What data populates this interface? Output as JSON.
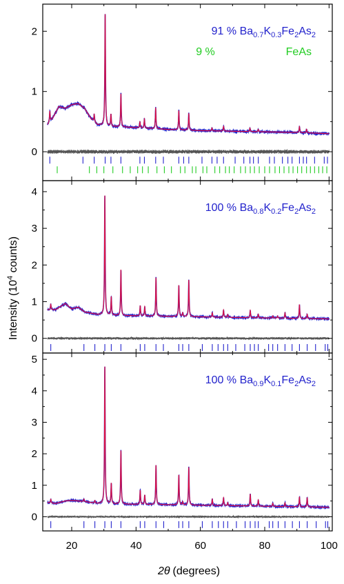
{
  "chart_data": {
    "type": "line",
    "xlabel": {
      "symbol": "2θ",
      "units": "(degrees)"
    },
    "ylabel": {
      "prefix": "Intensity (10",
      "sup": "4",
      "suffix": " counts)"
    },
    "xlim": [
      11,
      101
    ],
    "x_ticks": [
      20,
      40,
      60,
      80,
      100
    ],
    "colors": {
      "observed": "#2222cc",
      "calculated": "#dd1144",
      "difference": "#555555",
      "reflections_main": "#2222cc",
      "reflections_impurity": "#22cc22"
    },
    "panels": [
      {
        "ylim": [
          -0.48,
          2.45
        ],
        "yticks": [
          0,
          1,
          2
        ],
        "annotations": [
          {
            "text": "91 % Ba",
            "sub1": "0.7",
            "mid1": "K",
            "sub2": "0.3",
            "mid2": "Fe",
            "sub3": "2",
            "end": "As",
            "sub4": "2",
            "color": "#2222cc"
          },
          {
            "text": "9 %",
            "color": "#22cc22"
          },
          {
            "text": "FeAs",
            "color": "#22cc22"
          }
        ],
        "background": [
          [
            12.5,
            0.45
          ],
          [
            14,
            0.55
          ],
          [
            16,
            0.75
          ],
          [
            18,
            0.72
          ],
          [
            20,
            0.78
          ],
          [
            22,
            0.8
          ],
          [
            24,
            0.72
          ],
          [
            26,
            0.55
          ],
          [
            28,
            0.45
          ],
          [
            32,
            0.42
          ],
          [
            40,
            0.4
          ],
          [
            50,
            0.37
          ],
          [
            60,
            0.35
          ],
          [
            70,
            0.34
          ],
          [
            80,
            0.33
          ],
          [
            90,
            0.32
          ],
          [
            100,
            0.3
          ]
        ],
        "peaks": [
          [
            13.2,
            0.18
          ],
          [
            27.0,
            0.12
          ],
          [
            30.4,
            1.85
          ],
          [
            32.2,
            0.2
          ],
          [
            35.3,
            0.55
          ],
          [
            41.2,
            0.1
          ],
          [
            42.6,
            0.15
          ],
          [
            46.1,
            0.35
          ],
          [
            53.3,
            0.32
          ],
          [
            56.4,
            0.28
          ],
          [
            63.6,
            0.05
          ],
          [
            67.2,
            0.08
          ],
          [
            75.4,
            0.06
          ],
          [
            78.0,
            0.04
          ],
          [
            90.8,
            0.1
          ],
          [
            93.0,
            0.06
          ]
        ],
        "diff_offset": 0,
        "reflections": [
          {
            "y": -0.14,
            "x": [
              13.2,
              23.5,
              27.0,
              30.4,
              32.2,
              35.3,
              41.2,
              42.6,
              46.1,
              48.5,
              53.3,
              54.8,
              56.4,
              60.5,
              63.6,
              65.2,
              67.2,
              70.8,
              73.5,
              75.4,
              76.5,
              78.0,
              81.5,
              83.0,
              85.5,
              87.2,
              88.5,
              90.8,
              92.0,
              93.0,
              95.5,
              98.5,
              99.5
            ]
          },
          {
            "y": -0.3,
            "x": [
              15.5,
              25.5,
              27.8,
              30.0,
              32.8,
              35.8,
              38.2,
              40.5,
              42.0,
              43.8,
              46.5,
              48.8,
              51.0,
              53.8,
              55.2,
              57.5,
              58.6,
              60.8,
              62.0,
              64.5,
              66.0,
              67.8,
              69.0,
              70.5,
              72.5,
              74.0,
              75.5,
              76.8,
              78.3,
              80.0,
              81.5,
              83.2,
              84.6,
              86.0,
              87.5,
              88.8,
              90.2,
              91.5,
              93.0,
              94.2,
              95.5,
              96.8,
              98.0,
              99.3
            ]
          }
        ]
      },
      {
        "ylim": [
          -0.4,
          4.3
        ],
        "yticks": [
          0,
          1,
          2,
          3,
          4
        ],
        "annotations": [
          {
            "text": "100 % Ba",
            "sub1": "0.8",
            "mid1": "K",
            "sub2": "0.2",
            "mid2": "Fe",
            "sub3": "2",
            "end": "As",
            "sub4": "2",
            "color": "#2222cc"
          }
        ],
        "background": [
          [
            12.5,
            0.78
          ],
          [
            15,
            0.78
          ],
          [
            18,
            0.95
          ],
          [
            20,
            0.8
          ],
          [
            22,
            0.85
          ],
          [
            24,
            0.72
          ],
          [
            28,
            0.65
          ],
          [
            35,
            0.62
          ],
          [
            50,
            0.6
          ],
          [
            70,
            0.57
          ],
          [
            100,
            0.53
          ]
        ],
        "peaks": [
          [
            13.5,
            0.15
          ],
          [
            30.3,
            3.25
          ],
          [
            32.3,
            0.5
          ],
          [
            35.3,
            1.25
          ],
          [
            41.3,
            0.28
          ],
          [
            42.7,
            0.25
          ],
          [
            46.2,
            1.05
          ],
          [
            53.3,
            0.85
          ],
          [
            54.5,
            0.1
          ],
          [
            56.4,
            1.0
          ],
          [
            63.7,
            0.12
          ],
          [
            67.2,
            0.2
          ],
          [
            68.5,
            0.08
          ],
          [
            75.5,
            0.2
          ],
          [
            78.0,
            0.1
          ],
          [
            82.5,
            0.06
          ],
          [
            84.0,
            0.06
          ],
          [
            86.3,
            0.15
          ],
          [
            90.8,
            0.38
          ],
          [
            93.2,
            0.12
          ]
        ],
        "diff_offset": 0,
        "reflections": [
          {
            "y": -0.25,
            "x": [
              13.5,
              23.8,
              27.2,
              30.3,
              32.3,
              35.3,
              41.3,
              42.7,
              46.2,
              48.5,
              53.3,
              54.5,
              56.4,
              60.6,
              63.7,
              65.5,
              67.2,
              68.5,
              71.0,
              73.8,
              75.5,
              76.8,
              78.0,
              81.2,
              82.5,
              84.0,
              86.3,
              88.5,
              90.8,
              93.2,
              95.8,
              98.8,
              99.6
            ]
          }
        ]
      },
      {
        "ylim": [
          -0.45,
          5.2
        ],
        "yticks": [
          0,
          1,
          2,
          3,
          4,
          5
        ],
        "annotations": [
          {
            "text": "100 % Ba",
            "sub1": "0.9",
            "mid1": "K",
            "sub2": "0.1",
            "mid2": "Fe",
            "sub3": "2",
            "end": "As",
            "sub4": "2",
            "color": "#2222cc"
          }
        ],
        "background": [
          [
            12.5,
            0.45
          ],
          [
            15,
            0.42
          ],
          [
            18,
            0.5
          ],
          [
            20,
            0.52
          ],
          [
            24,
            0.48
          ],
          [
            28,
            0.42
          ],
          [
            35,
            0.4
          ],
          [
            50,
            0.38
          ],
          [
            70,
            0.35
          ],
          [
            100,
            0.3
          ]
        ],
        "peaks": [
          [
            13.5,
            0.12
          ],
          [
            23.8,
            0.08
          ],
          [
            27.2,
            0.08
          ],
          [
            30.3,
            4.35
          ],
          [
            32.3,
            0.65
          ],
          [
            35.3,
            1.7
          ],
          [
            41.3,
            0.45
          ],
          [
            42.7,
            0.3
          ],
          [
            46.2,
            1.25
          ],
          [
            53.3,
            0.95
          ],
          [
            54.5,
            0.1
          ],
          [
            56.4,
            1.2
          ],
          [
            63.7,
            0.2
          ],
          [
            67.2,
            0.25
          ],
          [
            68.5,
            0.1
          ],
          [
            75.5,
            0.38
          ],
          [
            78.0,
            0.2
          ],
          [
            82.5,
            0.1
          ],
          [
            86.3,
            0.12
          ],
          [
            90.8,
            0.32
          ],
          [
            93.2,
            0.3
          ]
        ],
        "diff_offset": 0,
        "reflections": [
          {
            "y": -0.25,
            "x": [
              13.5,
              23.8,
              27.2,
              30.3,
              32.3,
              35.3,
              41.3,
              42.7,
              46.2,
              48.6,
              53.3,
              54.5,
              56.4,
              60.6,
              63.7,
              65.6,
              67.2,
              68.5,
              71.2,
              73.9,
              75.5,
              77.0,
              78.0,
              81.4,
              82.5,
              84.2,
              86.3,
              88.6,
              90.8,
              93.2,
              96.0,
              98.9,
              99.6
            ]
          }
        ]
      }
    ]
  }
}
